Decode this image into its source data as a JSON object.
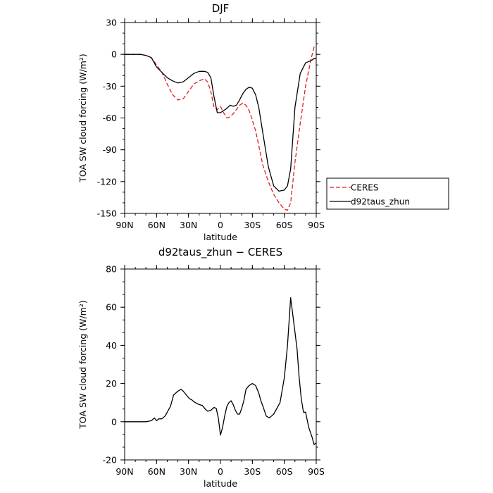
{
  "chart_data": [
    {
      "type": "line",
      "title": "DJF",
      "xlabel": "latitude",
      "ylabel": "TOA SW cloud forcing (W/m²)",
      "xlim": [
        -90,
        90
      ],
      "ylim": [
        -150,
        30
      ],
      "xticks": [
        -90,
        -60,
        -30,
        0,
        30,
        60,
        90
      ],
      "xticklabels": [
        "90N",
        "60N",
        "30N",
        "0",
        "30S",
        "60S",
        "90S"
      ],
      "yticks": [
        30,
        0,
        -30,
        -60,
        -90,
        -120,
        -150
      ],
      "yticklabels": [
        "30",
        "0",
        "-30",
        "-60",
        "-90",
        "-120",
        "-150"
      ],
      "legend": "right",
      "series": [
        {
          "name": "CERES",
          "color": "#e02020",
          "dash": true,
          "x": [
            -90,
            -80,
            -75,
            -70,
            -65,
            -60,
            -55,
            -50,
            -45,
            -40,
            -35,
            -30,
            -25,
            -20,
            -15,
            -12,
            -9,
            -6,
            -3,
            0,
            3,
            6,
            9,
            12,
            15,
            18,
            21,
            24,
            27,
            30,
            33,
            36,
            40,
            45,
            50,
            55,
            60,
            63,
            66,
            70,
            75,
            80,
            85,
            88,
            90
          ],
          "y": [
            0,
            0,
            0,
            -1,
            -3,
            -10,
            -17,
            -28,
            -38,
            -43,
            -42,
            -35,
            -28,
            -25,
            -23,
            -26,
            -35,
            -50,
            -52,
            -49,
            -55,
            -60,
            -59,
            -56,
            -52,
            -48,
            -46,
            -48,
            -53,
            -62,
            -72,
            -86,
            -105,
            -120,
            -132,
            -140,
            -146,
            -147,
            -140,
            -102,
            -65,
            -30,
            -5,
            7,
            8
          ]
        },
        {
          "name": "d92taus_zhun",
          "color": "#000000",
          "dash": false,
          "x": [
            -90,
            -80,
            -75,
            -70,
            -65,
            -60,
            -55,
            -50,
            -45,
            -40,
            -35,
            -30,
            -25,
            -20,
            -15,
            -12,
            -9,
            -6,
            -3,
            0,
            3,
            6,
            9,
            12,
            15,
            18,
            21,
            24,
            27,
            30,
            33,
            36,
            40,
            45,
            50,
            55,
            60,
            63,
            66,
            70,
            75,
            80,
            85,
            88,
            90
          ],
          "y": [
            0,
            0,
            0,
            -1,
            -3,
            -12,
            -17,
            -22,
            -25,
            -27,
            -26,
            -22,
            -18,
            -16,
            -16,
            -17,
            -22,
            -40,
            -55,
            -55,
            -53,
            -51,
            -48,
            -49,
            -48,
            -43,
            -37,
            -33,
            -31,
            -32,
            -38,
            -50,
            -75,
            -106,
            -124,
            -129,
            -128,
            -124,
            -108,
            -50,
            -18,
            -8,
            -6,
            -4,
            -4
          ]
        }
      ]
    },
    {
      "type": "line",
      "title": "d92taus_zhun − CERES",
      "xlabel": "latitude",
      "ylabel": "TOA SW cloud forcing (W/m²)",
      "xlim": [
        -90,
        90
      ],
      "ylim": [
        -20,
        80
      ],
      "xticks": [
        -90,
        -60,
        -30,
        0,
        30,
        60,
        90
      ],
      "xticklabels": [
        "90N",
        "60N",
        "30N",
        "0",
        "30S",
        "60S",
        "90S"
      ],
      "yticks": [
        80,
        60,
        40,
        20,
        0,
        -20
      ],
      "yticklabels": [
        "80",
        "60",
        "40",
        "20",
        "0",
        "-20"
      ],
      "series": [
        {
          "color": "#000000",
          "dash": false,
          "x": [
            -90,
            -80,
            -70,
            -65,
            -62,
            -60,
            -58,
            -55,
            -52,
            -50,
            -47,
            -44,
            -40,
            -37,
            -35,
            -32,
            -29,
            -27,
            -25,
            -22,
            -20,
            -17,
            -14,
            -12,
            -9,
            -6,
            -4,
            -2,
            0,
            2,
            4,
            6,
            8,
            10,
            12,
            14,
            16,
            18,
            20,
            22,
            24,
            27,
            30,
            33,
            36,
            38,
            40,
            43,
            46,
            48,
            50,
            53,
            56,
            60,
            63,
            66,
            70,
            72,
            74,
            76,
            78,
            80,
            83,
            86,
            88,
            90
          ],
          "y": [
            0,
            0,
            0,
            0.5,
            2,
            0.5,
            1.5,
            1.5,
            3,
            5,
            8,
            14,
            16,
            17,
            16,
            14,
            12,
            11.5,
            10.5,
            9.5,
            9,
            8.5,
            6.5,
            5.5,
            6,
            7.5,
            7,
            2,
            -7,
            -3,
            3,
            8,
            10,
            11,
            9,
            6,
            4,
            4,
            7,
            11,
            17,
            19,
            20,
            19,
            15,
            11,
            8,
            3,
            2,
            3,
            4,
            7,
            10,
            23,
            40,
            65,
            47,
            38,
            23,
            12,
            5,
            5,
            -3,
            -8,
            -12,
            -11
          ]
        }
      ]
    }
  ]
}
